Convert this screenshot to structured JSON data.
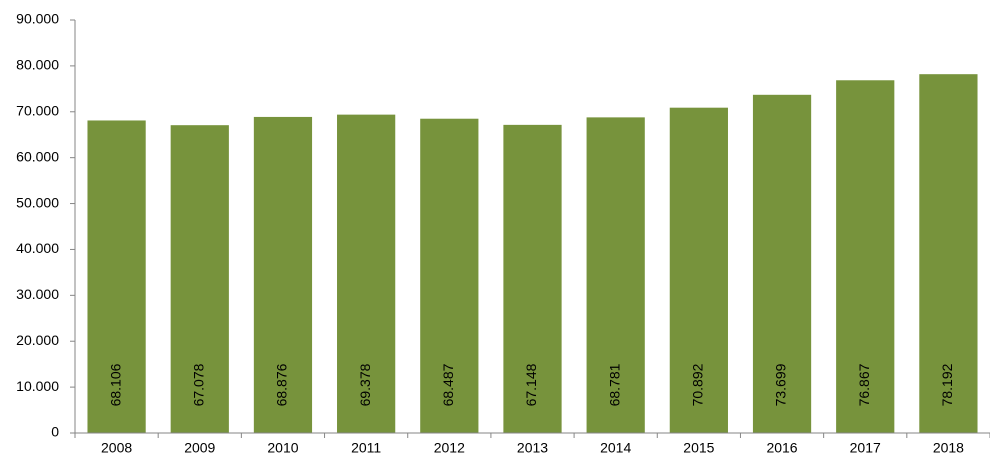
{
  "chart_data": {
    "type": "bar",
    "categories": [
      "2008",
      "2009",
      "2010",
      "2011",
      "2012",
      "2013",
      "2014",
      "2015",
      "2016",
      "2017",
      "2018"
    ],
    "values": [
      68106,
      67078,
      68876,
      69378,
      68487,
      67148,
      68781,
      70892,
      73699,
      76867,
      78192
    ],
    "value_labels": [
      "68.106",
      "67.078",
      "68.876",
      "69.378",
      "68.487",
      "67.148",
      "68.781",
      "70.892",
      "73.699",
      "76.867",
      "78.192"
    ],
    "color": "#77933c",
    "ylim": [
      0,
      90000
    ],
    "yticks": [
      0,
      {
        "value": 10000,
        "label": "10.000"
      },
      {
        "value": 20000,
        "label": "20.000"
      },
      {
        "value": 30000,
        "label": "30.000"
      },
      {
        "value": 40000,
        "label": "40.000"
      },
      {
        "value": 50000,
        "label": "50.000"
      },
      {
        "value": 60000,
        "label": "60.000"
      },
      {
        "value": 70000,
        "label": "70.000"
      },
      {
        "value": 80000,
        "label": "80.000"
      },
      {
        "value": 90000,
        "label": "90.000"
      }
    ],
    "grid": false
  }
}
